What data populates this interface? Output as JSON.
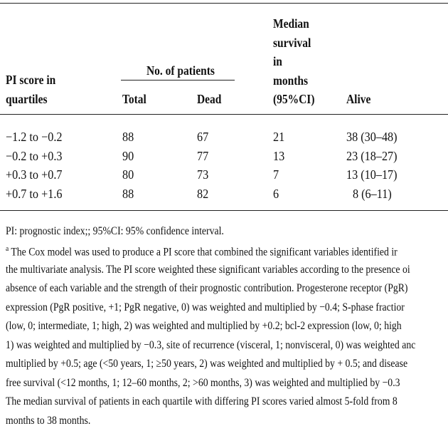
{
  "table": {
    "header": {
      "pi_score": [
        "PI score in",
        "quartiles"
      ],
      "patients_group": "No. of patients",
      "total": "Total",
      "dead": "Dead",
      "median": [
        "Median",
        "survival",
        "in",
        "months",
        "(95%CI)"
      ],
      "alive": "Alive"
    },
    "rows": [
      [
        "−1.2 to −0.2",
        "88",
        "67",
        "21",
        "38 (30–48)"
      ],
      [
        "−0.2 to +0.3",
        "90",
        "77",
        "13",
        "23 (18–27)"
      ],
      [
        "+0.3 to +0.7",
        "80",
        "73",
        "7",
        "13 (10–17)"
      ],
      [
        "+0.7 to +1.6",
        "88",
        "82",
        "6",
        "8 (6–11)"
      ]
    ]
  },
  "footnotes": {
    "abbreviations": "PI: prognostic index;; 95%CI: 95% confidence interval.",
    "marker": "a",
    "lines": [
      " The Cox model was used to produce a PI score that combined the significant variables identified ir",
      "the multivariate analysis. The PI score weighted these significant variables according to the presence oi",
      "absence of each variable and the strength of their prognostic contribution. Progesterone receptor (PgR)",
      "expression (PgR positive, +1; PgR negative, 0) was weighted and multiplied by −0.4; S-phase fractior",
      "(low, 0; intermediate, 1; high, 2) was weighted and multiplied by +0.2; bcl-2 expression (low, 0; high",
      "1) was weighted and multiplied by −0.3, site of recurrence (visceral, 1; nonvisceral, 0) was weighted anc",
      "multiplied by +0.5; age (<50 years, 1; ≥50 years, 2) was weighted and multiplied by + 0.5; and disease",
      "free survival (<12 months, 1; 12–60 months, 2; >60 months, 3) was weighted and multiplied by −0.3",
      "The median survival of patients in each quartile with differing PI scores varied almost 5-fold from 8",
      "months to 38 months."
    ]
  }
}
